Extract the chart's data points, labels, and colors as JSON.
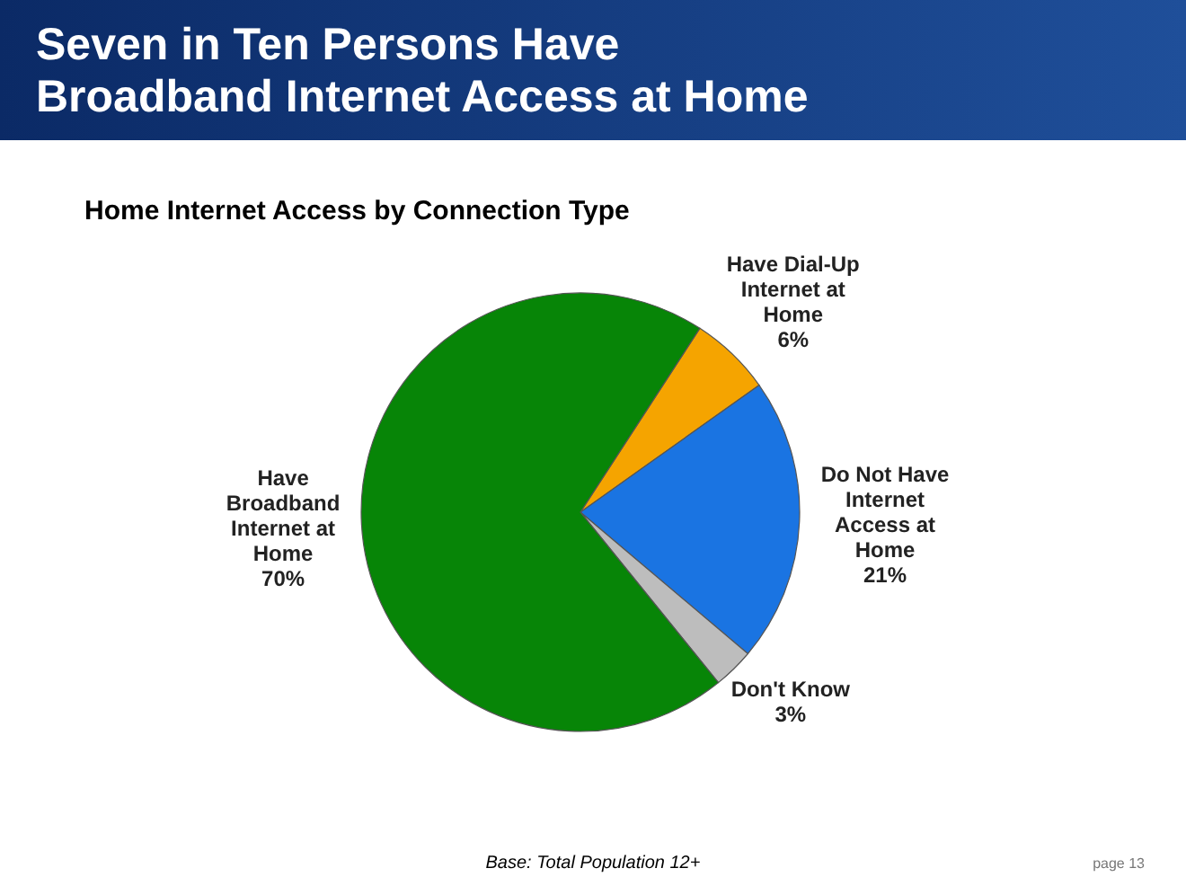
{
  "chart_data": {
    "type": "pie",
    "title": "Seven in Ten Persons Have Broadband Internet Access at Home",
    "subtitle": "Home Internet Access by Connection Type",
    "categories": [
      "Have Dial-Up Internet at Home",
      "Do Not Have Internet Access at Home",
      "Don't Know",
      "Have Broadband Internet at Home"
    ],
    "values": [
      6,
      21,
      3,
      70
    ],
    "colors": [
      "#f5a400",
      "#1a74e2",
      "#bdbdbd",
      "#078507"
    ],
    "value_labels": [
      "6%",
      "21%",
      "3%",
      "70%"
    ],
    "annotations": [
      "Base: Total Population 12+",
      "page 13"
    ]
  }
}
